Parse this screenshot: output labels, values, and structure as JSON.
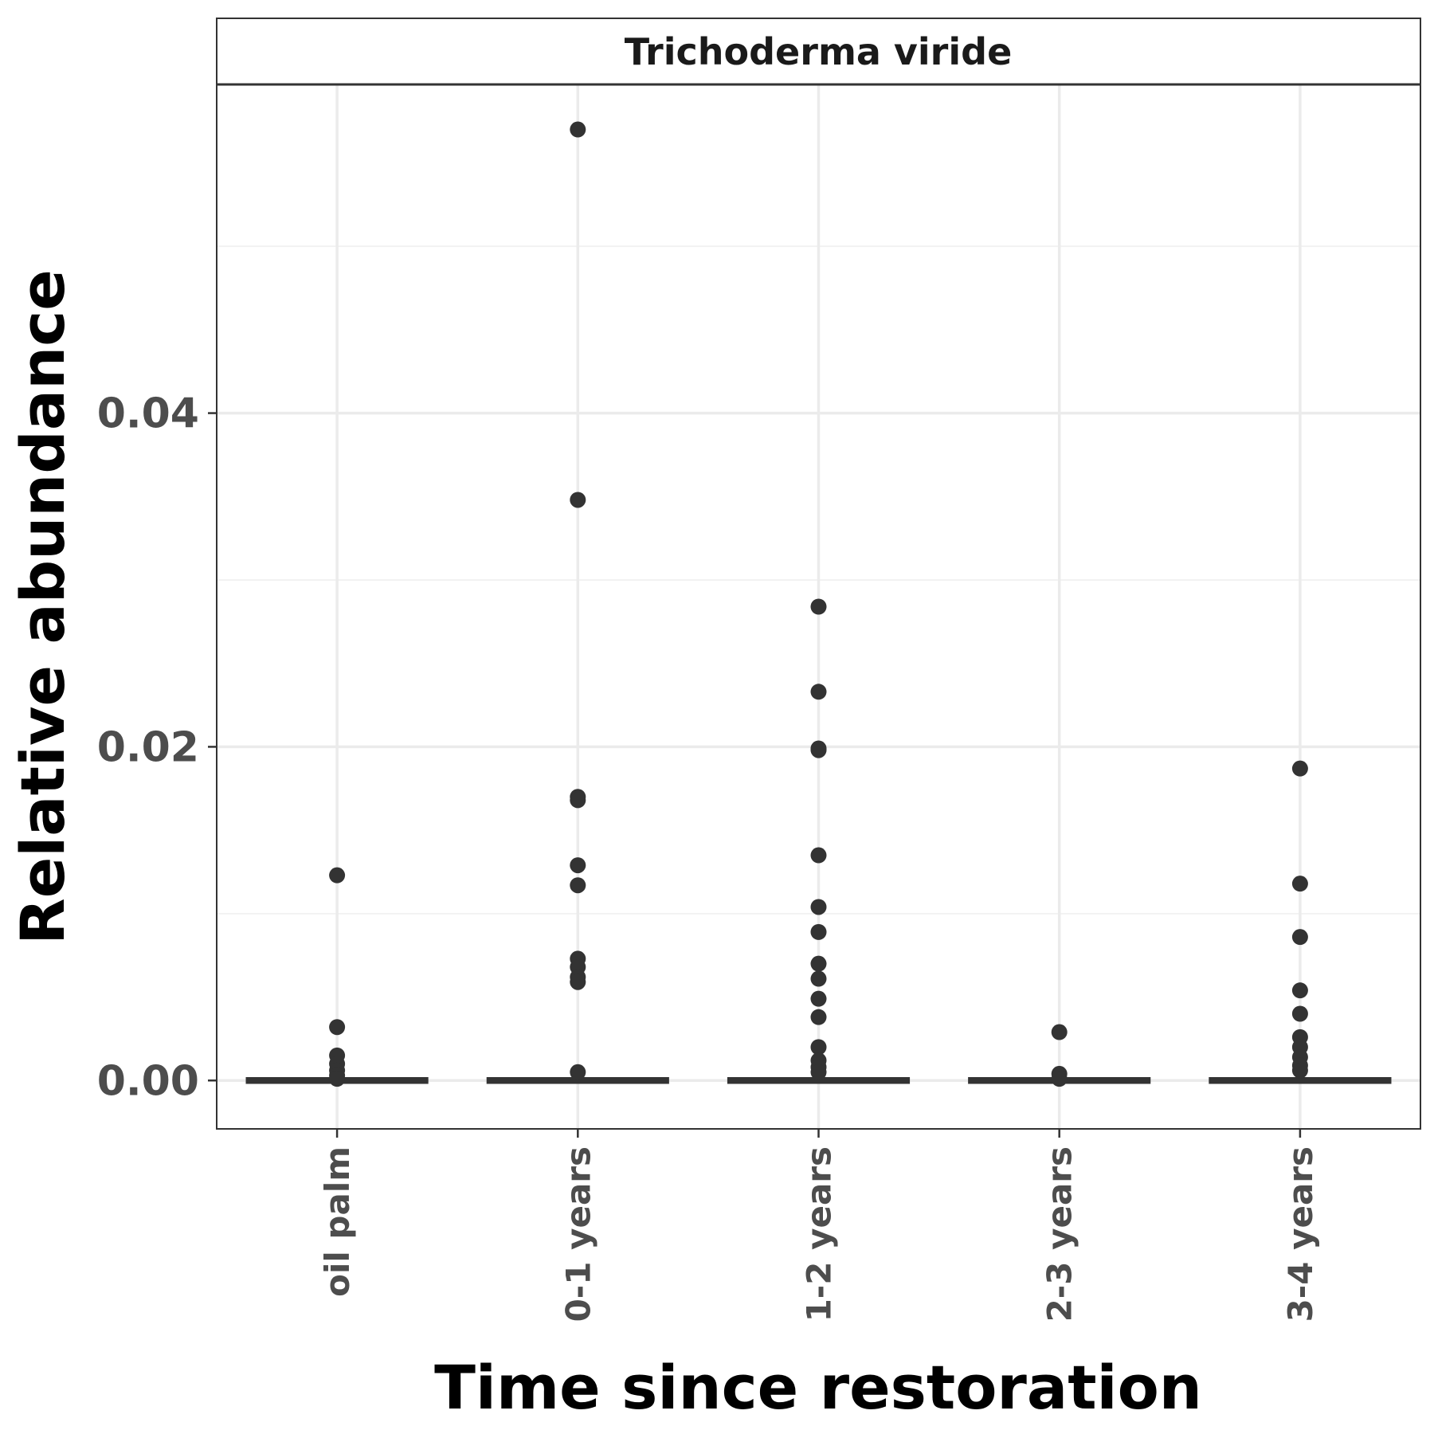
{
  "chart_data": {
    "type": "boxplot",
    "facet_label": "Trichoderma viride",
    "xlabel": "Time since restoration",
    "ylabel": "Relative abundance",
    "categories": [
      "oil palm",
      "0-1 years",
      "1-2 years",
      "2-3 years",
      "3-4 years"
    ],
    "yticks": [
      0.0,
      0.02,
      0.04
    ],
    "ytick_labels": [
      "0.00",
      "0.02",
      "0.04"
    ],
    "ylim": [
      -0.0029,
      0.0597
    ],
    "grid": true,
    "median": [
      0,
      0,
      0,
      0,
      0
    ],
    "outliers": [
      [
        0.0123,
        0.0032,
        0.0015,
        0.001,
        0.0006,
        0.0003,
        0.0001
      ],
      [
        0.057,
        0.0348,
        0.017,
        0.0168,
        0.0129,
        0.0117,
        0.0073,
        0.0068,
        0.0062,
        0.0059,
        0.0005
      ],
      [
        0.0284,
        0.0233,
        0.0199,
        0.0198,
        0.0135,
        0.0104,
        0.0089,
        0.007,
        0.0061,
        0.0049,
        0.0038,
        0.002,
        0.0012,
        0.0008,
        0.0005
      ],
      [
        0.0029,
        0.0004,
        0.0001
      ],
      [
        0.0187,
        0.0118,
        0.0086,
        0.0054,
        0.004,
        0.0026,
        0.002,
        0.0014,
        0.0009,
        0.0006
      ]
    ],
    "colors": {
      "point": "#333333",
      "box": "#333333",
      "grid_major": "#ebebeb",
      "grid_minor": "#f2f2f2",
      "panel_border": "#333333",
      "strip_fill": "#ffffff"
    }
  }
}
